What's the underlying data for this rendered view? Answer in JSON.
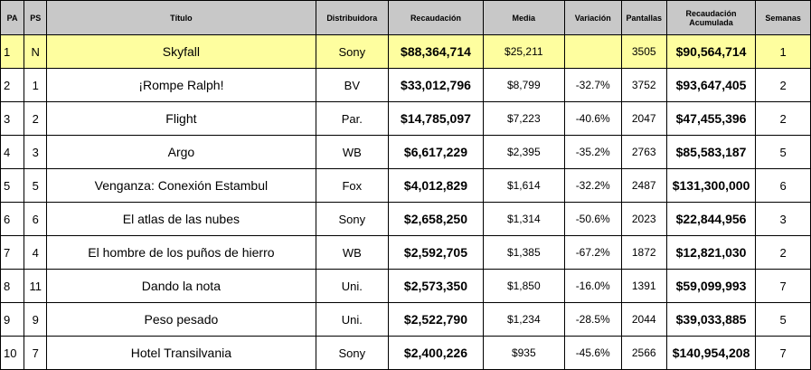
{
  "headers": {
    "pa": "PA",
    "ps": "PS",
    "title": "Título",
    "distributor": "Distribuidora",
    "gross": "Recaudación",
    "average": "Media",
    "change": "Variación",
    "screens": "Pantallas",
    "cumulative_line1": "Recaudación",
    "cumulative_line2": "Acumulada",
    "weeks": "Semanas"
  },
  "highlight_color": "#fefe9f",
  "header_color": "#c8c8c8",
  "rows": [
    {
      "pa": "1",
      "ps": "N",
      "title": "Skyfall",
      "distributor": "Sony",
      "gross": "$88,364,714",
      "average": "$25,211",
      "change": "",
      "screens": "3505",
      "cumulative": "$90,564,714",
      "weeks": "1"
    },
    {
      "pa": "2",
      "ps": "1",
      "title": "¡Rompe Ralph!",
      "distributor": "BV",
      "gross": "$33,012,796",
      "average": "$8,799",
      "change": "-32.7%",
      "screens": "3752",
      "cumulative": "$93,647,405",
      "weeks": "2"
    },
    {
      "pa": "3",
      "ps": "2",
      "title": "Flight",
      "distributor": "Par.",
      "gross": "$14,785,097",
      "average": "$7,223",
      "change": "-40.6%",
      "screens": "2047",
      "cumulative": "$47,455,396",
      "weeks": "2"
    },
    {
      "pa": "4",
      "ps": "3",
      "title": "Argo",
      "distributor": "WB",
      "gross": "$6,617,229",
      "average": "$2,395",
      "change": "-35.2%",
      "screens": "2763",
      "cumulative": "$85,583,187",
      "weeks": "5"
    },
    {
      "pa": "5",
      "ps": "5",
      "title": "Venganza: Conexión Estambul",
      "distributor": "Fox",
      "gross": "$4,012,829",
      "average": "$1,614",
      "change": "-32.2%",
      "screens": "2487",
      "cumulative": "$131,300,000",
      "weeks": "6"
    },
    {
      "pa": "6",
      "ps": "6",
      "title": "El atlas de las nubes",
      "distributor": "Sony",
      "gross": "$2,658,250",
      "average": "$1,314",
      "change": "-50.6%",
      "screens": "2023",
      "cumulative": "$22,844,956",
      "weeks": "3"
    },
    {
      "pa": "7",
      "ps": "4",
      "title": "El hombre de los puños de hierro",
      "distributor": "WB",
      "gross": "$2,592,705",
      "average": "$1,385",
      "change": "-67.2%",
      "screens": "1872",
      "cumulative": "$12,821,030",
      "weeks": "2"
    },
    {
      "pa": "8",
      "ps": "11",
      "title": "Dando la nota",
      "distributor": "Uni.",
      "gross": "$2,573,350",
      "average": "$1,850",
      "change": "-16.0%",
      "screens": "1391",
      "cumulative": "$59,099,993",
      "weeks": "7"
    },
    {
      "pa": "9",
      "ps": "9",
      "title": "Peso pesado",
      "distributor": "Uni.",
      "gross": "$2,522,790",
      "average": "$1,234",
      "change": "-28.5%",
      "screens": "2044",
      "cumulative": "$39,033,885",
      "weeks": "5"
    },
    {
      "pa": "10",
      "ps": "7",
      "title": "Hotel Transilvania",
      "distributor": "Sony",
      "gross": "$2,400,226",
      "average": "$935",
      "change": "-45.6%",
      "screens": "2566",
      "cumulative": "$140,954,208",
      "weeks": "7"
    }
  ]
}
